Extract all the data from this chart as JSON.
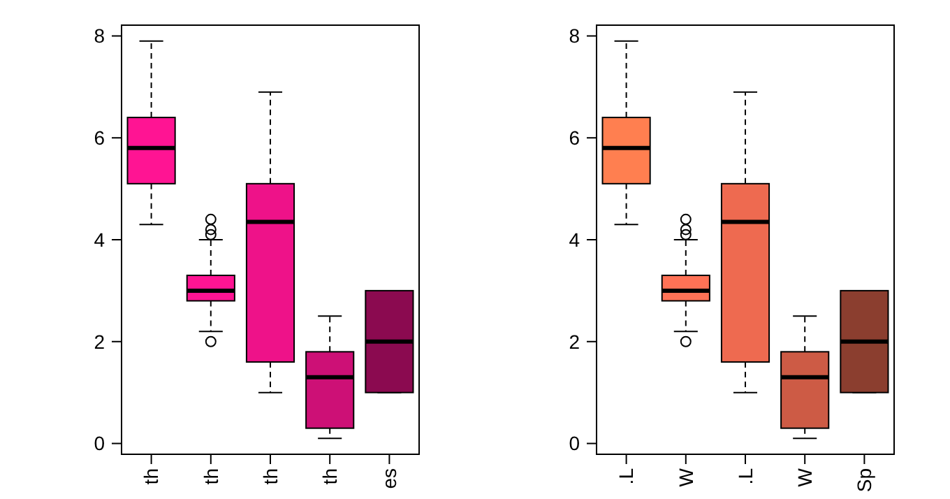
{
  "chart_data": [
    {
      "type": "box",
      "categories": [
        "th",
        "th",
        "th",
        "th",
        "es"
      ],
      "colors": [
        "#ff1493",
        "#ff1493",
        "#ee1289",
        "#cd1076",
        "#8b0a50"
      ],
      "ylim": [
        -0.212,
        8.212
      ],
      "yticks": [
        0,
        2,
        4,
        6,
        8
      ],
      "boxes": [
        {
          "low": 4.3,
          "q1": 5.1,
          "median": 5.8,
          "q3": 6.4,
          "high": 7.9
        },
        {
          "low": 2.2,
          "q1": 2.8,
          "median": 3.0,
          "q3": 3.3,
          "high": 4.0,
          "outliers": [
            4.4,
            4.1,
            4.2,
            2.0
          ]
        },
        {
          "low": 1.0,
          "q1": 1.6,
          "median": 4.35,
          "q3": 5.1,
          "high": 6.9
        },
        {
          "low": 0.1,
          "q1": 0.3,
          "median": 1.3,
          "q3": 1.8,
          "high": 2.5
        },
        {
          "low": 1,
          "q1": 1,
          "median": 2,
          "q3": 3,
          "high": 3
        }
      ]
    },
    {
      "type": "box",
      "categories": [
        ".L",
        "W",
        ".L",
        "W",
        "Sp"
      ],
      "colors": [
        "#ff7f50",
        "#ff7256",
        "#ee6a50",
        "#cd5b45",
        "#8b3e2f"
      ],
      "ylim": [
        -0.212,
        8.212
      ],
      "yticks": [
        0,
        2,
        4,
        6,
        8
      ],
      "boxes": [
        {
          "low": 4.3,
          "q1": 5.1,
          "median": 5.8,
          "q3": 6.4,
          "high": 7.9
        },
        {
          "low": 2.2,
          "q1": 2.8,
          "median": 3.0,
          "q3": 3.3,
          "high": 4.0,
          "outliers": [
            4.4,
            4.1,
            4.2,
            2.0
          ]
        },
        {
          "low": 1.0,
          "q1": 1.6,
          "median": 4.35,
          "q3": 5.1,
          "high": 6.9
        },
        {
          "low": 0.1,
          "q1": 0.3,
          "median": 1.3,
          "q3": 1.8,
          "high": 2.5
        },
        {
          "low": 1,
          "q1": 1,
          "median": 2,
          "q3": 3,
          "high": 3
        }
      ]
    }
  ]
}
